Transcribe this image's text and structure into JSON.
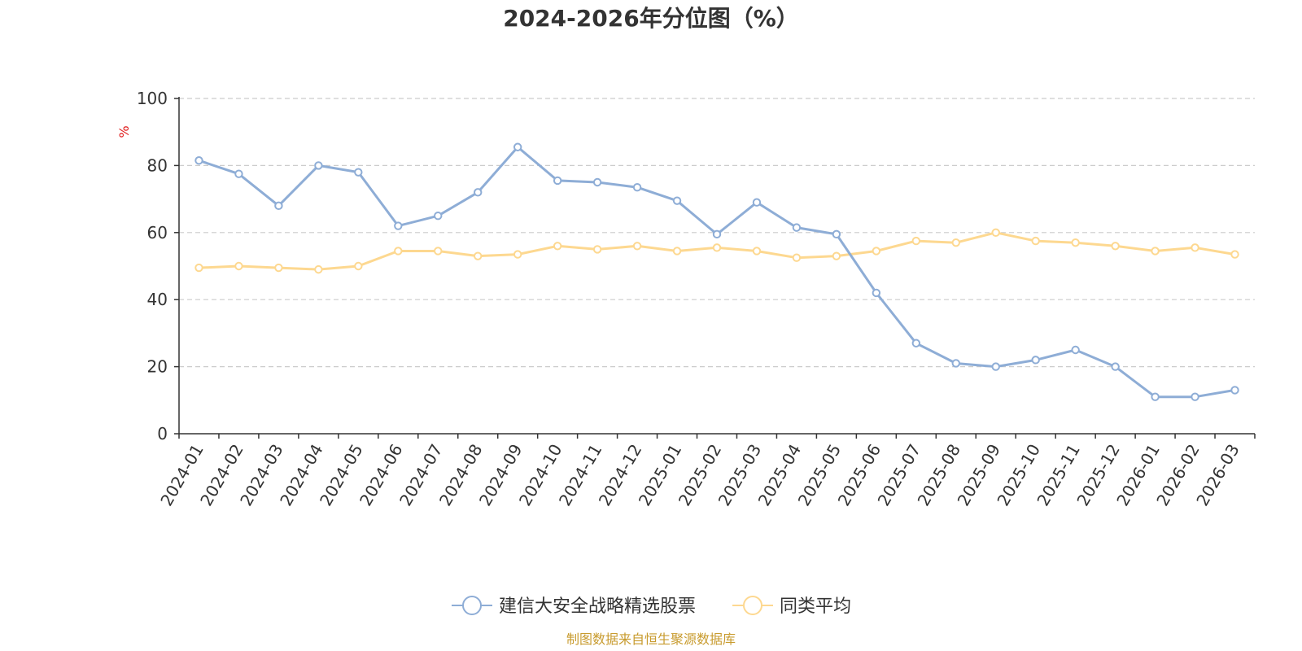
{
  "chart_data": {
    "type": "line",
    "title": "2024-2026年分位图（%）",
    "ylabel": "%",
    "ylim": [
      0,
      100
    ],
    "yticks": [
      0,
      20,
      40,
      60,
      80,
      100
    ],
    "grid": true,
    "legend_position": "bottom",
    "categories": [
      "2024-01",
      "2024-02",
      "2024-03",
      "2024-04",
      "2024-05",
      "2024-06",
      "2024-07",
      "2024-08",
      "2024-09",
      "2024-10",
      "2024-11",
      "2024-12",
      "2025-01",
      "2025-02",
      "2025-03",
      "2025-04",
      "2025-05",
      "2025-06",
      "2025-07",
      "2025-08",
      "2025-09",
      "2025-10",
      "2025-11",
      "2025-12",
      "2026-01",
      "2026-02",
      "2026-03"
    ],
    "series": [
      {
        "name": "建信大安全战略精选股票",
        "color": "#8eadd6",
        "values": [
          81.5,
          77.5,
          68,
          80,
          78,
          62,
          65,
          72,
          85.5,
          75.5,
          75,
          73.5,
          69.5,
          59.5,
          69,
          61.5,
          59.5,
          42,
          27,
          21,
          20,
          22,
          25,
          20,
          11,
          11,
          13
        ]
      },
      {
        "name": "同类平均",
        "color": "#fdd890",
        "values": [
          49.5,
          50,
          49.5,
          49,
          50,
          54.5,
          54.5,
          53,
          53.5,
          56,
          55,
          56,
          54.5,
          55.5,
          54.5,
          52.5,
          53,
          54.5,
          57.5,
          57,
          60,
          57.5,
          57,
          56,
          54.5,
          55.5,
          53.5
        ]
      }
    ]
  },
  "colors": {
    "unit_label": "#e01b1b",
    "source": "#c89b2e",
    "grid": "#cccccc",
    "axis": "#333333"
  },
  "footer": {
    "source": "制图数据来自恒生聚源数据库"
  }
}
